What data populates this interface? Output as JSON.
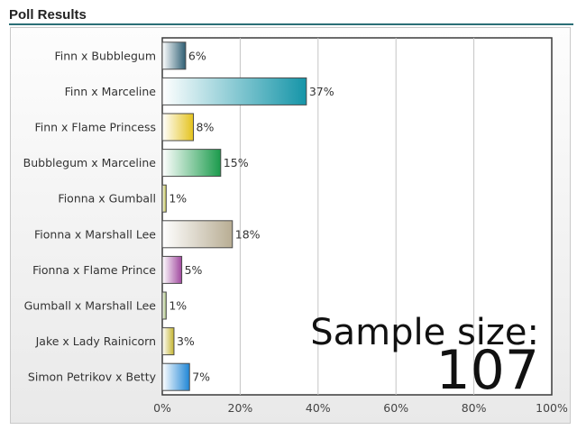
{
  "header": {
    "title": "Poll Results"
  },
  "chart_data": {
    "type": "bar",
    "orientation": "horizontal",
    "categories": [
      "Finn x Bubblegum",
      "Finn x Marceline",
      "Finn x Flame Princess",
      "Bubblegum x Marceline",
      "Fionna x Gumball",
      "Fionna x Marshall Lee",
      "Fionna x Flame Prince",
      "Gumball x Marshall Lee",
      "Jake x Lady Rainicorn",
      "Simon Petrikov x Betty"
    ],
    "values": [
      6,
      37,
      8,
      15,
      1,
      18,
      5,
      1,
      3,
      7
    ],
    "value_labels": [
      "6%",
      "37%",
      "8%",
      "15%",
      "1%",
      "18%",
      "5%",
      "1%",
      "3%",
      "7%"
    ],
    "colors": [
      "#2e5f74",
      "#1595a8",
      "#e4c21c",
      "#1b9b4c",
      "#b8ba3e",
      "#b8ad93",
      "#a0479e",
      "#9eb870",
      "#c5b530",
      "#1f86d6"
    ],
    "xlim": [
      0,
      100
    ],
    "x_ticks": [
      "0%",
      "20%",
      "40%",
      "60%",
      "80%",
      "100%"
    ],
    "grid": true,
    "annotation": {
      "line1": "Sample size:",
      "line2": "107"
    }
  }
}
